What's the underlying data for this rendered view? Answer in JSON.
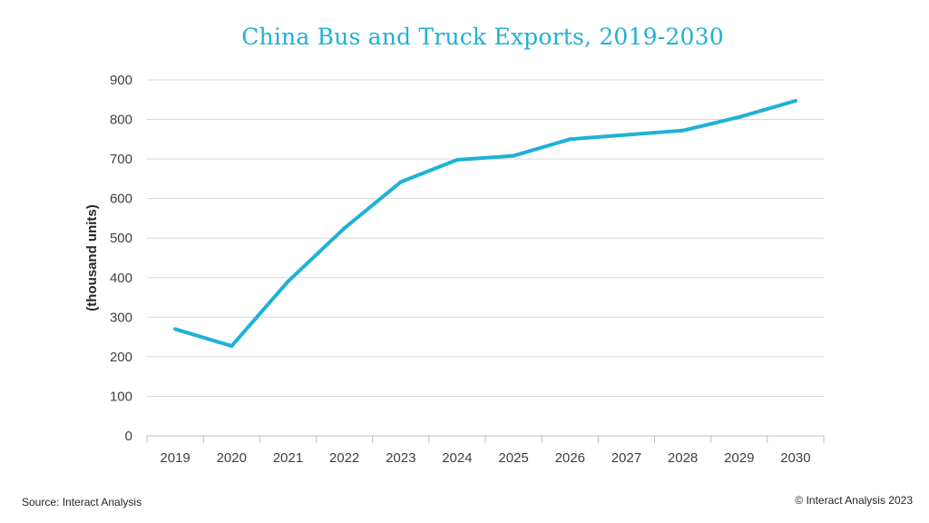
{
  "chart_data": {
    "type": "line",
    "title": "China Bus and Truck Exports, 2019-2030",
    "xlabel": "",
    "ylabel": "(thousand units)",
    "categories": [
      "2019",
      "2020",
      "2021",
      "2022",
      "2023",
      "2024",
      "2025",
      "2026",
      "2027",
      "2028",
      "2029",
      "2030"
    ],
    "series": [
      {
        "name": "China Bus and Truck Exports",
        "values": [
          270,
          227,
          390,
          525,
          642,
          698,
          708,
          750,
          761,
          772,
          806,
          847
        ],
        "color": "#1fb1d6"
      }
    ],
    "ylim": [
      0,
      900
    ],
    "yticks": [
      0,
      100,
      200,
      300,
      400,
      500,
      600,
      700,
      800,
      900
    ],
    "grid": true,
    "legend": "none"
  },
  "footer": {
    "source": "Source: Interact Analysis",
    "copyright": "© Interact Analysis 2023"
  }
}
